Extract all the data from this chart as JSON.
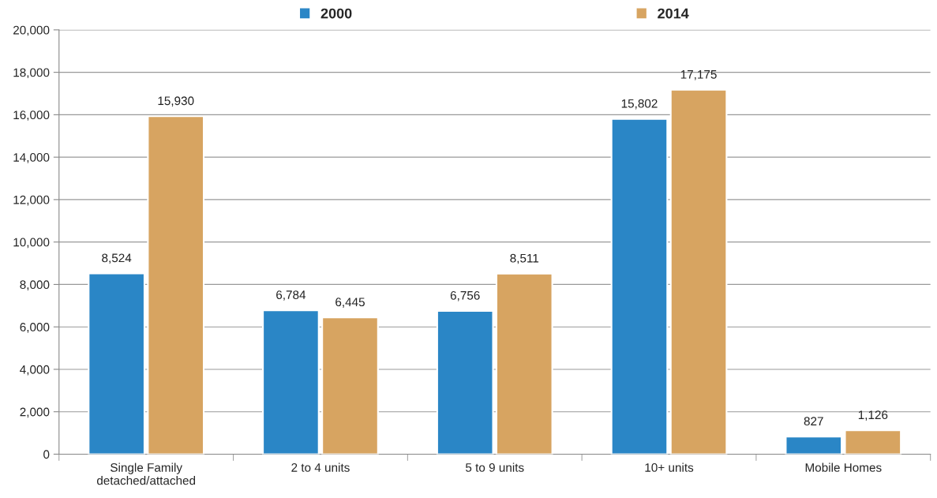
{
  "chart_data": {
    "type": "bar",
    "categories": [
      "Single Family\ndetached/attached",
      "2 to 4 units",
      "5 to 9 units",
      "10+ units",
      "Mobile Homes"
    ],
    "series": [
      {
        "name": "2000",
        "color": "#2a86c6",
        "values": [
          8524,
          6784,
          6756,
          15802,
          827
        ],
        "value_labels": [
          "8,524",
          "6,784",
          "6,756",
          "15,802",
          "827"
        ]
      },
      {
        "name": "2014",
        "color": "#d7a461",
        "values": [
          15930,
          6445,
          8511,
          17175,
          1126
        ],
        "value_labels": [
          "15,930",
          "6,445",
          "8,511",
          "17,175",
          "1,126"
        ]
      }
    ],
    "ylim": [
      0,
      20000
    ],
    "yticks": [
      {
        "value": 0,
        "label": "0"
      },
      {
        "value": 2000,
        "label": "2,000"
      },
      {
        "value": 4000,
        "label": "4,000"
      },
      {
        "value": 6000,
        "label": "6,000"
      },
      {
        "value": 8000,
        "label": "8,000"
      },
      {
        "value": 10000,
        "label": "10,000"
      },
      {
        "value": 12000,
        "label": "12,000"
      },
      {
        "value": 14000,
        "label": "14,000"
      },
      {
        "value": 16000,
        "label": "16,000"
      },
      {
        "value": 18000,
        "label": "18,000"
      },
      {
        "value": 20000,
        "label": "20,000"
      }
    ],
    "grid": "y",
    "legend": "top"
  }
}
